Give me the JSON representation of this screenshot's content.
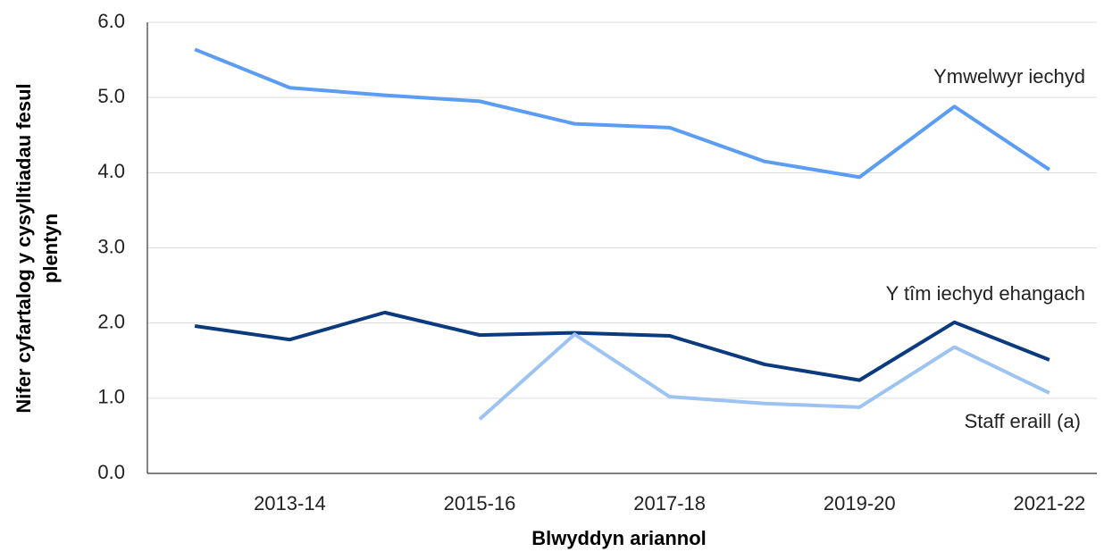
{
  "chart_data": {
    "type": "line",
    "x_label": "Blwyddyn ariannol",
    "y_label": [
      "Nifer cyfartalog y cysylltiadau fesul",
      "plentyn"
    ],
    "categories": [
      null,
      "2013-14",
      null,
      "2015-16",
      null,
      "2017-18",
      null,
      "2019-20",
      null,
      "2021-22"
    ],
    "series": [
      {
        "name": "Ymwelwyr iechyd",
        "color": "#5b9cf5",
        "values": [
          5.64,
          5.13,
          5.03,
          4.95,
          4.65,
          4.6,
          4.15,
          3.94,
          4.88,
          4.04
        ]
      },
      {
        "name": "Y tîm iechyd ehangach",
        "color": "#0b3a7e",
        "values": [
          1.96,
          1.78,
          2.14,
          1.84,
          1.87,
          1.83,
          1.45,
          1.24,
          2.01,
          1.51
        ]
      },
      {
        "name": "Staff eraill (a)",
        "color": "#9dc3f3",
        "values": [
          null,
          null,
          null,
          0.72,
          1.85,
          1.02,
          0.93,
          0.88,
          1.68,
          1.07
        ]
      }
    ],
    "ylim": [
      0,
      6
    ],
    "yticks": [
      {
        "value": 0,
        "label": "0.0"
      },
      {
        "value": 1,
        "label": "1.0"
      },
      {
        "value": 2,
        "label": "2.0"
      },
      {
        "value": 3,
        "label": "3.0"
      },
      {
        "value": 4,
        "label": "4.0"
      },
      {
        "value": 5,
        "label": "5.0"
      },
      {
        "value": 6,
        "label": "6.0"
      }
    ],
    "grid": true
  }
}
